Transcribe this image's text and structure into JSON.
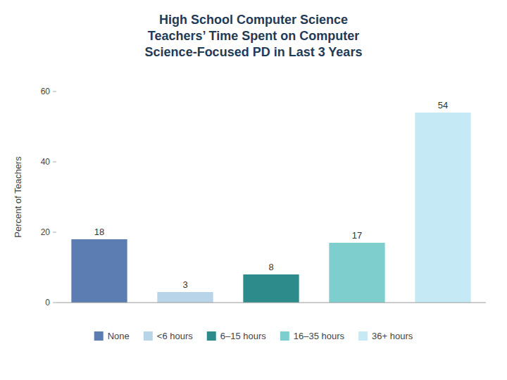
{
  "chart_data": {
    "type": "bar",
    "title": "High School Computer Science\nTeachers’ Time Spent on Computer\nScience-Focused PD in Last 3 Years",
    "categories": [
      "None",
      "<6 hours",
      "6–15 hours",
      "16–35 hours",
      "36+ hours"
    ],
    "values": [
      18,
      3,
      8,
      17,
      54
    ],
    "colors": [
      "#5b7db1",
      "#b8d4e8",
      "#2e8b8b",
      "#7ecece",
      "#c5eaf5"
    ],
    "ylabel": "Percent of Teachers",
    "ylim": [
      0,
      60
    ],
    "yticks": [
      0,
      20,
      40,
      60
    ],
    "grid": false,
    "legend": "bottom",
    "data_labels": true,
    "tick_labels": "y"
  }
}
